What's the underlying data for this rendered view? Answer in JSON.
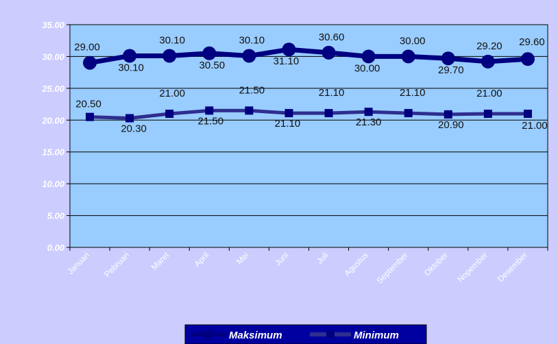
{
  "chart_data": {
    "type": "line",
    "categories": [
      "Januari",
      "Pebruari",
      "Maret",
      "April",
      "Mei",
      "Juni",
      "Juli",
      "Agustus",
      "September",
      "Oktober",
      "Nopember",
      "Desember"
    ],
    "series": [
      {
        "name": "Maksimum",
        "values": [
          29.0,
          30.1,
          30.1,
          30.5,
          30.1,
          31.1,
          30.6,
          30.0,
          30.0,
          29.7,
          29.2,
          29.6
        ],
        "labels": [
          "29.00",
          "30.10",
          "30.10",
          "30.50",
          "30.10",
          "31.10",
          "30.60",
          "30.00",
          "30.00",
          "29.70",
          "29.20",
          "29.60"
        ],
        "color": "#000080",
        "marker": "circle"
      },
      {
        "name": "Minimum",
        "values": [
          20.5,
          20.3,
          21.0,
          21.5,
          21.5,
          21.1,
          21.1,
          21.3,
          21.1,
          20.9,
          21.0,
          21.0
        ],
        "labels": [
          "20.50",
          "20.30",
          "21.00",
          "21.50",
          "21.50",
          "21.10",
          "21.10",
          "21.30",
          "21.10",
          "20.90",
          "21.00",
          "21.00"
        ],
        "color": "#2e2e8f",
        "marker": "square"
      }
    ],
    "yticks": [
      "0.00",
      "5.00",
      "10.00",
      "15.00",
      "20.00",
      "25.00",
      "30.00",
      "35.00"
    ],
    "ylim": [
      0,
      35
    ],
    "title": "",
    "xlabel": "",
    "ylabel": "",
    "grid": true,
    "legend": "bottom",
    "colors": {
      "background": "#ccccff",
      "plot": "#99ccff"
    }
  }
}
